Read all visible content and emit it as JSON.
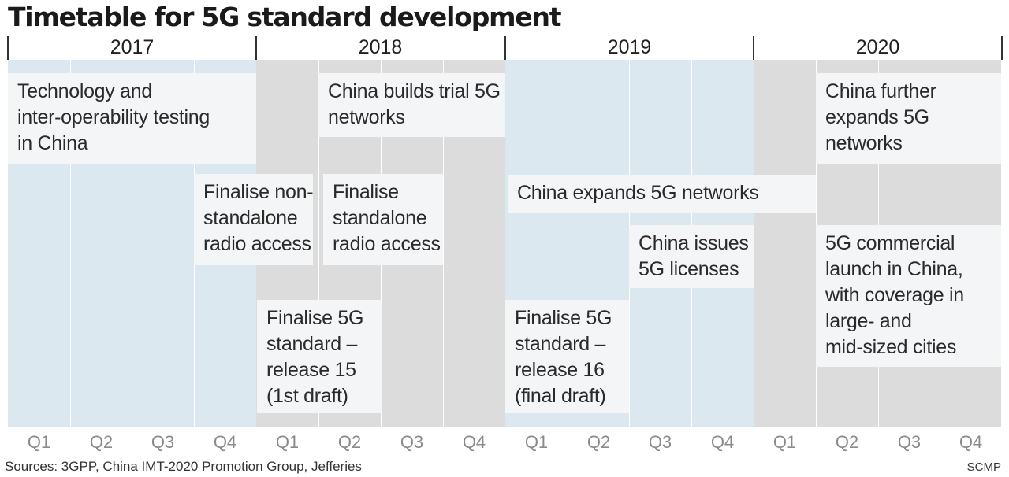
{
  "title": "Timetable for 5G standard development",
  "years": [
    "2017",
    "2018",
    "2019",
    "2020"
  ],
  "quarters": [
    "Q1",
    "Q2",
    "Q3",
    "Q4"
  ],
  "colors": {
    "blue_band": "#dbe8ef",
    "grey_band": "#dcdcdc",
    "box": "#f4f6f7"
  },
  "events": [
    {
      "lines": [
        "Technology and",
        "inter-operability testing",
        "in China"
      ]
    },
    {
      "lines": [
        "China builds trial 5G",
        "networks"
      ]
    },
    {
      "lines": [
        "China further",
        "expands 5G",
        "networks"
      ]
    },
    {
      "lines": [
        "Finalise non-",
        "standalone",
        "radio access"
      ]
    },
    {
      "lines": [
        "Finalise",
        "standalone",
        "radio access"
      ]
    },
    {
      "lines": [
        "China expands 5G networks"
      ]
    },
    {
      "lines": [
        "China issues",
        "5G licenses"
      ]
    },
    {
      "lines": [
        "5G commercial",
        "launch in China,",
        "with coverage in",
        "large- and",
        "mid-sized cities"
      ]
    },
    {
      "lines": [
        "Finalise 5G",
        "standard –",
        "release 15",
        "(1st draft)"
      ]
    },
    {
      "lines": [
        "Finalise 5G",
        "standard –",
        "release 16",
        "(final draft)"
      ]
    }
  ],
  "footer": {
    "source": "Sources: 3GPP, China IMT-2020 Promotion Group, Jefferies",
    "credit": "SCMP"
  }
}
